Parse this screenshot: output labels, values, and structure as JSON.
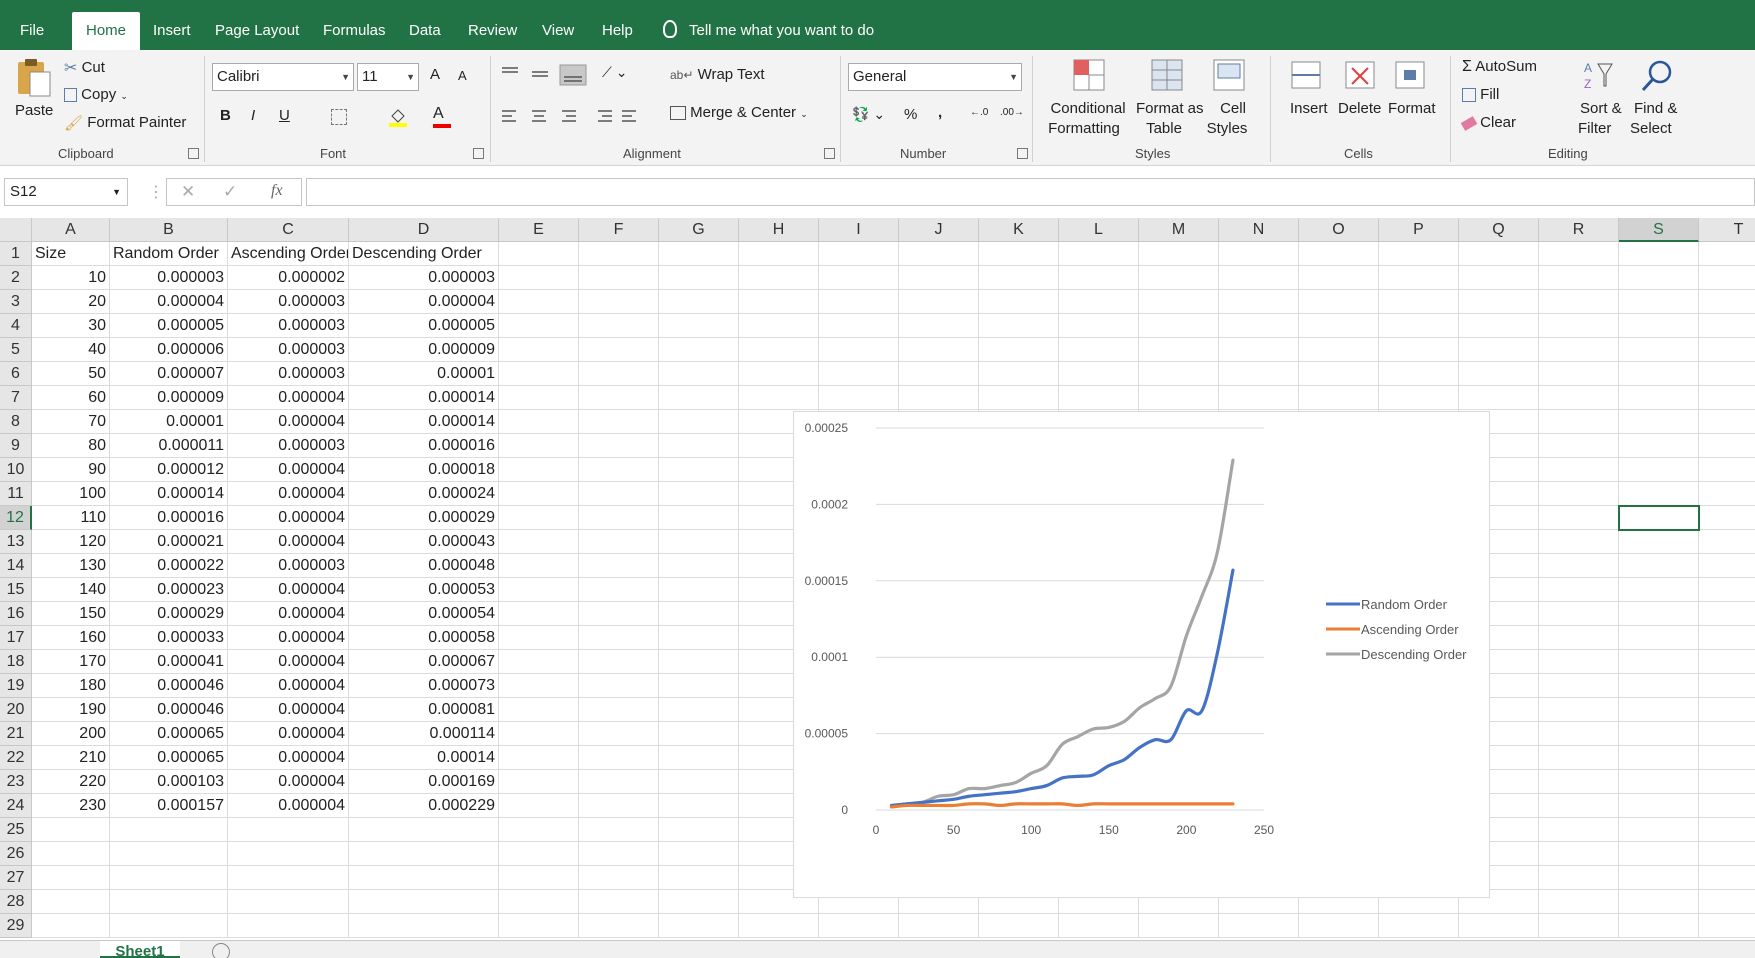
{
  "tabs": [
    "File",
    "Home",
    "Insert",
    "Page Layout",
    "Formulas",
    "Data",
    "Review",
    "View",
    "Help"
  ],
  "tell_me": "Tell me what you want to do",
  "ribbon": {
    "clipboard": {
      "paste": "Paste",
      "cut": "Cut",
      "copy": "Copy",
      "format_painter": "Format Painter",
      "label": "Clipboard"
    },
    "font": {
      "name": "Calibri",
      "size": "11",
      "grow": "A",
      "shrink": "A",
      "bold": "B",
      "italic": "I",
      "underline": "U",
      "label": "Font",
      "font_color": "A"
    },
    "alignment": {
      "wrap_text": "Wrap Text",
      "merge_center": "Merge & Center",
      "label": "Alignment"
    },
    "number": {
      "format": "General",
      "percent": "%",
      "comma": ",",
      "label": "Number"
    },
    "styles": {
      "conditional_1": "Conditional",
      "conditional_2": "Formatting",
      "format_table_1": "Format as",
      "format_table_2": "Table",
      "cell_styles_1": "Cell",
      "cell_styles_2": "Styles",
      "label": "Styles"
    },
    "cells": {
      "insert": "Insert",
      "delete": "Delete",
      "format": "Format",
      "label": "Cells"
    },
    "editing": {
      "autosum": "AutoSum",
      "fill": "Fill",
      "clear": "Clear",
      "sort_1": "Sort &",
      "sort_2": "Filter",
      "find_1": "Find &",
      "find_2": "Select",
      "label": "Editing"
    }
  },
  "name_box": "S12",
  "fx": "fx",
  "columns": [
    "A",
    "B",
    "C",
    "D",
    "E",
    "F",
    "G",
    "H",
    "I",
    "J",
    "K",
    "L",
    "M",
    "N",
    "O",
    "P",
    "Q",
    "R",
    "S",
    "T"
  ],
  "rows": [
    "1",
    "2",
    "3",
    "4",
    "5",
    "6",
    "7",
    "8",
    "9",
    "10",
    "11",
    "12",
    "13",
    "14",
    "15",
    "16",
    "17",
    "18",
    "19",
    "20",
    "21",
    "22",
    "23",
    "24",
    "25",
    "26",
    "27",
    "28",
    "29"
  ],
  "headers": [
    "Size",
    "Random Order",
    "Ascending Order",
    "Descending Order"
  ],
  "table": [
    [
      "10",
      "0.000003",
      "0.000002",
      "0.000003"
    ],
    [
      "20",
      "0.000004",
      "0.000003",
      "0.000004"
    ],
    [
      "30",
      "0.000005",
      "0.000003",
      "0.000005"
    ],
    [
      "40",
      "0.000006",
      "0.000003",
      "0.000009"
    ],
    [
      "50",
      "0.000007",
      "0.000003",
      "0.00001"
    ],
    [
      "60",
      "0.000009",
      "0.000004",
      "0.000014"
    ],
    [
      "70",
      "0.00001",
      "0.000004",
      "0.000014"
    ],
    [
      "80",
      "0.000011",
      "0.000003",
      "0.000016"
    ],
    [
      "90",
      "0.000012",
      "0.000004",
      "0.000018"
    ],
    [
      "100",
      "0.000014",
      "0.000004",
      "0.000024"
    ],
    [
      "110",
      "0.000016",
      "0.000004",
      "0.000029"
    ],
    [
      "120",
      "0.000021",
      "0.000004",
      "0.000043"
    ],
    [
      "130",
      "0.000022",
      "0.000003",
      "0.000048"
    ],
    [
      "140",
      "0.000023",
      "0.000004",
      "0.000053"
    ],
    [
      "150",
      "0.000029",
      "0.000004",
      "0.000054"
    ],
    [
      "160",
      "0.000033",
      "0.000004",
      "0.000058"
    ],
    [
      "170",
      "0.000041",
      "0.000004",
      "0.000067"
    ],
    [
      "180",
      "0.000046",
      "0.000004",
      "0.000073"
    ],
    [
      "190",
      "0.000046",
      "0.000004",
      "0.000081"
    ],
    [
      "200",
      "0.000065",
      "0.000004",
      "0.000114"
    ],
    [
      "210",
      "0.000065",
      "0.000004",
      "0.00014"
    ],
    [
      "220",
      "0.000103",
      "0.000004",
      "0.000169"
    ],
    [
      "230",
      "0.000157",
      "0.000004",
      "0.000229"
    ]
  ],
  "sheet_tab": "Sheet1",
  "chart_data": {
    "type": "line",
    "x": [
      10,
      20,
      30,
      40,
      50,
      60,
      70,
      80,
      90,
      100,
      110,
      120,
      130,
      140,
      150,
      160,
      170,
      180,
      190,
      200,
      210,
      220,
      230
    ],
    "series": [
      {
        "name": "Random Order",
        "color": "#4472C4",
        "values": [
          3e-06,
          4e-06,
          5e-06,
          6e-06,
          7e-06,
          9e-06,
          1e-05,
          1.1e-05,
          1.2e-05,
          1.4e-05,
          1.6e-05,
          2.1e-05,
          2.2e-05,
          2.3e-05,
          2.9e-05,
          3.3e-05,
          4.1e-05,
          4.6e-05,
          4.6e-05,
          6.5e-05,
          6.5e-05,
          0.000103,
          0.000157
        ]
      },
      {
        "name": "Ascending Order",
        "color": "#ED7D31",
        "values": [
          2e-06,
          3e-06,
          3e-06,
          3e-06,
          3e-06,
          4e-06,
          4e-06,
          3e-06,
          4e-06,
          4e-06,
          4e-06,
          4e-06,
          3e-06,
          4e-06,
          4e-06,
          4e-06,
          4e-06,
          4e-06,
          4e-06,
          4e-06,
          4e-06,
          4e-06,
          4e-06
        ]
      },
      {
        "name": "Descending Order",
        "color": "#A5A5A5",
        "values": [
          3e-06,
          4e-06,
          5e-06,
          9e-06,
          1e-05,
          1.4e-05,
          1.4e-05,
          1.6e-05,
          1.8e-05,
          2.4e-05,
          2.9e-05,
          4.3e-05,
          4.8e-05,
          5.3e-05,
          5.4e-05,
          5.8e-05,
          6.7e-05,
          7.3e-05,
          8.1e-05,
          0.000114,
          0.00014,
          0.000169,
          0.000229
        ]
      }
    ],
    "xlim": [
      0,
      250
    ],
    "ylim": [
      0,
      0.00025
    ],
    "x_ticks": [
      "0",
      "50",
      "100",
      "150",
      "200",
      "250"
    ],
    "y_ticks": [
      "0",
      "0.00005",
      "0.0001",
      "0.00015",
      "0.0002",
      "0.00025"
    ],
    "grid": true,
    "legend": "right"
  }
}
